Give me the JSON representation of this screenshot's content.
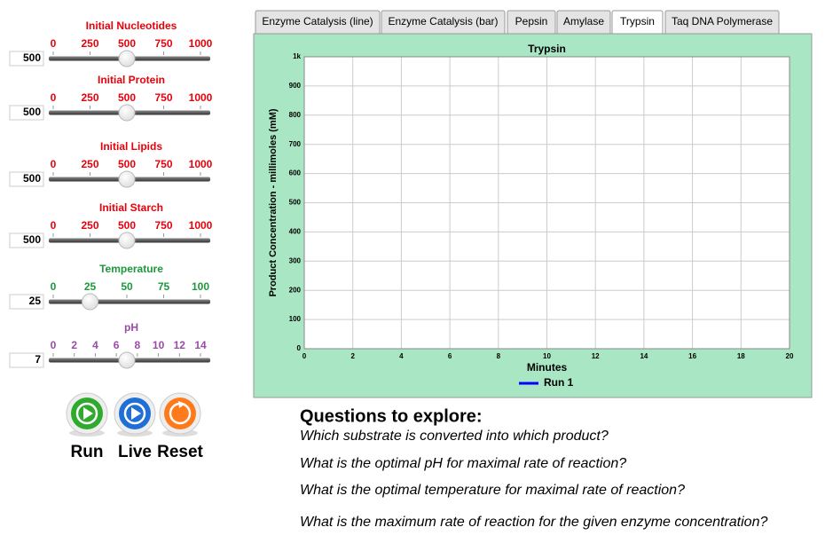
{
  "sliders": [
    {
      "label": "Initial Nucleotides",
      "color": "#e8000b",
      "ticks": [
        0,
        250,
        500,
        750,
        1000
      ],
      "value": 500
    },
    {
      "label": "Initial Protein",
      "color": "#e8000b",
      "ticks": [
        0,
        250,
        500,
        750,
        1000
      ],
      "value": 500
    },
    {
      "label": "Initial Lipids",
      "color": "#e8000b",
      "ticks": [
        0,
        250,
        500,
        750,
        1000
      ],
      "value": 500
    },
    {
      "label": "Initial Starch",
      "color": "#e8000b",
      "ticks": [
        0,
        250,
        500,
        750,
        1000
      ],
      "value": 500
    },
    {
      "label": "Temperature",
      "color": "#1a9a3a",
      "ticks": [
        0,
        25,
        50,
        75,
        100
      ],
      "value": 25
    },
    {
      "label": "pH",
      "color": "#9b4aa8",
      "ticks": [
        0,
        2,
        4,
        6,
        8,
        10,
        12,
        14
      ],
      "value": 7
    }
  ],
  "buttons": [
    {
      "label": "Run",
      "color": "#2faa2f"
    },
    {
      "label": "Live",
      "color": "#1f6fd6"
    },
    {
      "label": "Reset",
      "color": "#ff7a1a"
    }
  ],
  "tabs": [
    {
      "label": "Enzyme Catalysis (line)",
      "active": false
    },
    {
      "label": "Enzyme Catalysis (bar)",
      "active": false
    },
    {
      "label": "Pepsin",
      "active": false
    },
    {
      "label": "Amylase",
      "active": false
    },
    {
      "label": "Trypsin",
      "active": true
    },
    {
      "label": "Taq DNA Polymerase",
      "active": false
    }
  ],
  "chart_data": {
    "type": "line",
    "title": "Trypsin",
    "x_label": "Minutes",
    "y_label": "Product Concentration - millimoles (mM)",
    "xlim": [
      0,
      20
    ],
    "xticks": [
      0,
      2,
      4,
      6,
      8,
      10,
      12,
      14,
      16,
      18,
      20
    ],
    "ylim": [
      0,
      1000
    ],
    "yticks": [
      0,
      100,
      200,
      300,
      400,
      500,
      600,
      700,
      800,
      900,
      {
        "value": 1000,
        "label": "1k"
      }
    ],
    "grid": true,
    "x": [],
    "series": [
      {
        "name": "Run 1",
        "color": "#0000ff",
        "values": []
      }
    ]
  },
  "questions": {
    "title": "Questions to explore:",
    "items": [
      "Which substrate is converted into which product?",
      "What is the optimal pH for maximal rate of reaction?",
      "What is the optimal temperature for maximal rate of reaction?",
      "What is the maximum rate of reaction for the given enzyme concentration?"
    ]
  }
}
